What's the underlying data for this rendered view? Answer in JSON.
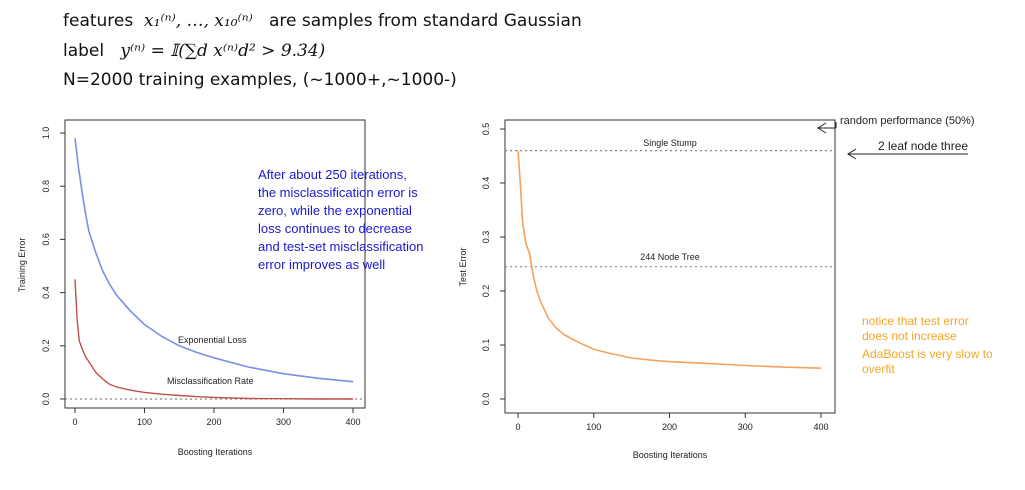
{
  "header": {
    "features_word": "features",
    "features_math": "x₁⁽ⁿ⁾, …, x₁₀⁽ⁿ⁾",
    "features_text": "are samples from standard Gaussian",
    "label_word": "label",
    "label_math": "y⁽ⁿ⁾ = 𝕀(∑d x⁽ⁿ⁾d² > 9.34)",
    "training_text": "N=2000 training examples, (~1000+,~1000-)"
  },
  "notes": {
    "left_annotation": [
      "After about 250 iterations,",
      "the misclassification error is",
      "zero, while the exponential",
      "loss continues to decrease",
      "and test-set misclassification",
      "error improves as well"
    ],
    "random_performance": "random performance (50%)",
    "two_leaf": "2 leaf node three",
    "notice": [
      "notice that test error",
      "does not increase"
    ],
    "adaboost": [
      "AdaBoost is very slow to",
      "overfit"
    ]
  },
  "colors": {
    "blue_text": "#1a1acc",
    "orange_text": "#f5a623",
    "exp_loss": "#7b8fe8",
    "misclass": "#c0504d",
    "test_err": "#f5a25d"
  },
  "chart_data": [
    {
      "type": "line",
      "xlabel": "Boosting Iterations",
      "ylabel": "Training Error",
      "xlim": [
        0,
        400
      ],
      "ylim": [
        0,
        1.0
      ],
      "xticks": [
        0,
        100,
        200,
        300,
        400
      ],
      "yticks": [
        0.0,
        0.2,
        0.4,
        0.6,
        0.8,
        1.0
      ],
      "series": [
        {
          "name": "Exponential Loss",
          "x": [
            0,
            5,
            10,
            15,
            20,
            30,
            40,
            50,
            60,
            80,
            100,
            125,
            150,
            175,
            200,
            250,
            300,
            350,
            400
          ],
          "y": [
            0.98,
            0.87,
            0.78,
            0.7,
            0.63,
            0.55,
            0.48,
            0.43,
            0.39,
            0.33,
            0.28,
            0.235,
            0.2,
            0.175,
            0.155,
            0.12,
            0.095,
            0.078,
            0.065
          ]
        },
        {
          "name": "Misclassification Rate",
          "x": [
            0,
            3,
            6,
            10,
            15,
            20,
            25,
            30,
            40,
            50,
            60,
            80,
            100,
            125,
            150,
            175,
            200,
            250,
            300,
            350,
            400
          ],
          "y": [
            0.45,
            0.3,
            0.22,
            0.19,
            0.16,
            0.14,
            0.12,
            0.1,
            0.075,
            0.055,
            0.045,
            0.033,
            0.025,
            0.018,
            0.013,
            0.009,
            0.006,
            0.002,
            0.001,
            0.0,
            0.0
          ]
        }
      ],
      "reference_line": 0.0
    },
    {
      "type": "line",
      "xlabel": "Boosting Iterations",
      "ylabel": "Test Error",
      "xlim": [
        0,
        400
      ],
      "ylim": [
        0,
        0.5
      ],
      "xticks": [
        0,
        100,
        200,
        300,
        400
      ],
      "yticks": [
        0.0,
        0.1,
        0.2,
        0.3,
        0.4,
        0.5
      ],
      "series": [
        {
          "x": [
            0,
            3,
            6,
            10,
            15,
            20,
            25,
            30,
            35,
            40,
            50,
            60,
            70,
            80,
            100,
            120,
            150,
            175,
            200,
            250,
            300,
            350,
            400
          ],
          "y": [
            0.46,
            0.4,
            0.33,
            0.29,
            0.27,
            0.23,
            0.2,
            0.18,
            0.165,
            0.15,
            0.132,
            0.12,
            0.112,
            0.105,
            0.092,
            0.085,
            0.076,
            0.072,
            0.069,
            0.066,
            0.062,
            0.059,
            0.057
          ]
        }
      ],
      "reference_lines": [
        {
          "label": "Single Stump",
          "y": 0.46
        },
        {
          "label": "244 Node Tree",
          "y": 0.245
        }
      ]
    }
  ]
}
